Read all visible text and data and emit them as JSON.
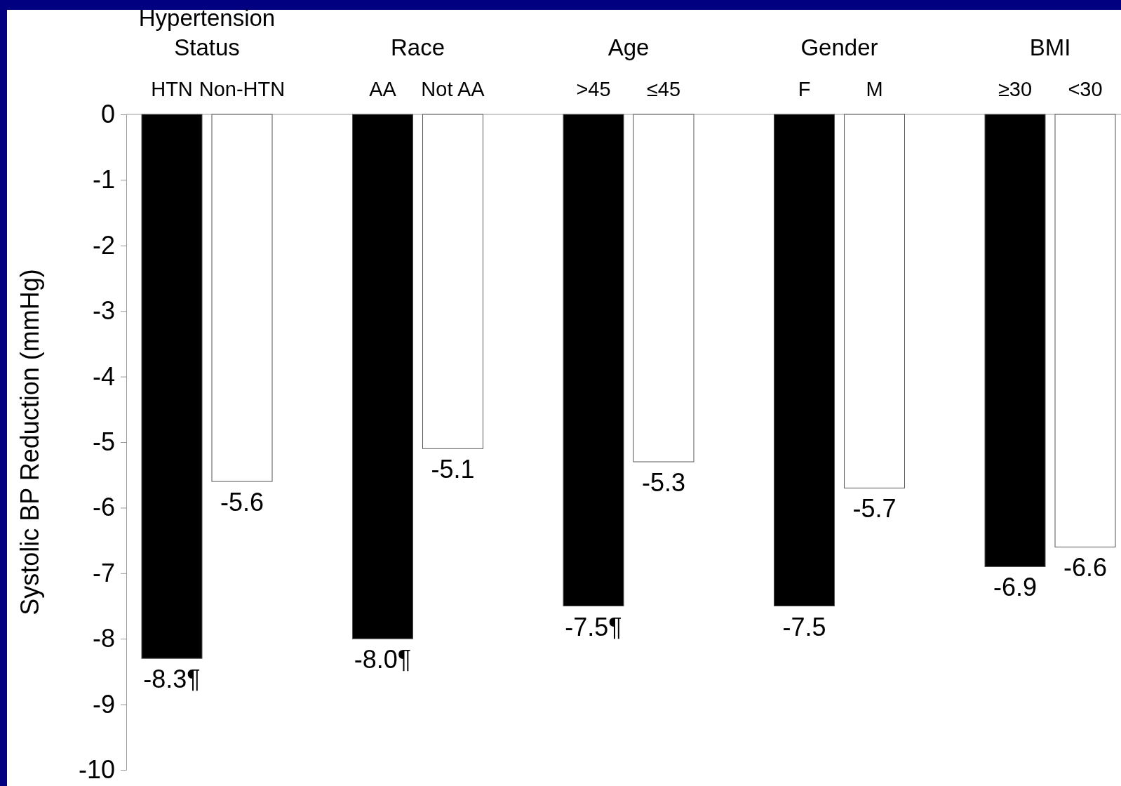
{
  "chart_data": {
    "type": "bar",
    "ylabel": "Systolic BP Reduction (mmHg)",
    "categories": [
      "HTN",
      "Non-HTN",
      "AA",
      "Not AA",
      ">45",
      "≤45",
      "F",
      "M",
      "≥30",
      "<30"
    ],
    "values": [
      -8.3,
      -5.6,
      -8.0,
      -5.1,
      -7.5,
      -5.3,
      -7.5,
      -5.7,
      -6.9,
      -6.6
    ],
    "colors": [
      "#000000",
      "#ffffff",
      "#000000",
      "#ffffff",
      "#000000",
      "#ffffff",
      "#000000",
      "#ffffff",
      "#000000",
      "#ffffff"
    ],
    "value_labels": [
      "-8.3¶",
      "-5.6",
      "-8.0¶",
      "-5.1",
      "-7.5¶",
      "-5.3",
      "-7.5",
      "-5.7",
      "-6.9",
      "-6.6"
    ],
    "ylim": [
      -10,
      0
    ],
    "yticks": [
      0,
      -1,
      -2,
      -3,
      -4,
      -5,
      -6,
      -7,
      -8,
      -9,
      -10
    ],
    "annotations": [
      "Hypertension Status",
      "Race",
      "Age",
      "Gender",
      "BMI"
    ]
  }
}
